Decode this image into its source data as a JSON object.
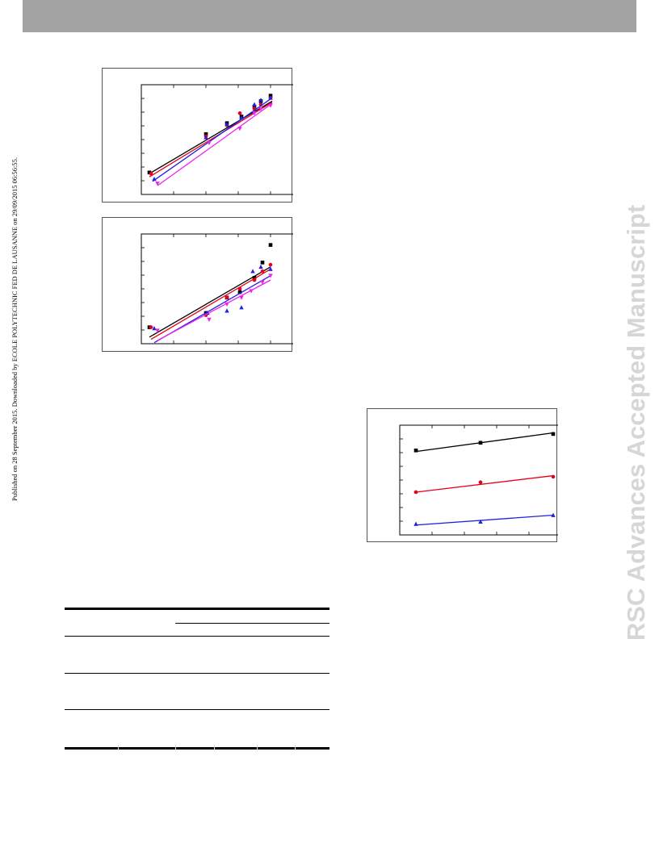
{
  "page": {
    "side_note": "Published on 28 September 2015. Downloaded by ECOLE POLYTECHNIC FED DE LAUSANNE on 29/09/2015 06:56:55.",
    "watermark": "RSC Advances Accepted Manuscript"
  },
  "colors": {
    "header_band": "#a3a3a3",
    "watermark": "#d6d6d6",
    "black_series": "#000000",
    "red_series": "#e8001b",
    "blue_series": "#1f1fe6",
    "magenta_series": "#ee22ee"
  },
  "chart_data": [
    {
      "type": "scatter",
      "title": "",
      "xlabel": "",
      "ylabel": "",
      "xlim": [
        0,
        1
      ],
      "ylim": [
        0,
        1
      ],
      "grid": false,
      "trendlines": true,
      "series": [
        {
          "color": "#000000",
          "marker": "square",
          "x": [
            0.05,
            0.4,
            0.53,
            0.62,
            0.7,
            0.74,
            0.8
          ],
          "y": [
            0.2,
            0.55,
            0.65,
            0.71,
            0.8,
            0.85,
            0.9
          ],
          "fit": [
            [
              0.05,
              0.19
            ],
            [
              0.81,
              0.85
            ]
          ]
        },
        {
          "color": "#e8001b",
          "marker": "circle",
          "x": [
            0.06,
            0.4,
            0.53,
            0.61,
            0.7,
            0.74,
            0.8
          ],
          "y": [
            0.19,
            0.53,
            0.63,
            0.74,
            0.78,
            0.82,
            0.88
          ],
          "fit": [
            [
              0.05,
              0.16
            ],
            [
              0.81,
              0.84
            ]
          ]
        },
        {
          "color": "#1f1fe6",
          "marker": "triangle",
          "x": [
            0.08,
            0.4,
            0.53,
            0.62,
            0.7,
            0.74,
            0.8
          ],
          "y": [
            0.14,
            0.52,
            0.64,
            0.7,
            0.82,
            0.86,
            0.88
          ],
          "fit": [
            [
              0.07,
              0.12
            ],
            [
              0.81,
              0.88
            ]
          ]
        },
        {
          "color": "#ee22ee",
          "marker": "triangle-down",
          "x": [
            0.1,
            0.42,
            0.61,
            0.7,
            0.74,
            0.8
          ],
          "y": [
            0.1,
            0.47,
            0.6,
            0.74,
            0.78,
            0.81
          ],
          "fit": [
            [
              0.1,
              0.08
            ],
            [
              0.81,
              0.83
            ]
          ]
        }
      ]
    },
    {
      "type": "scatter",
      "title": "",
      "xlabel": "",
      "ylabel": "",
      "xlim": [
        0,
        1
      ],
      "ylim": [
        0,
        1
      ],
      "grid": false,
      "trendlines": true,
      "series": [
        {
          "color": "#000000",
          "marker": "square",
          "x": [
            0.05,
            0.4,
            0.53,
            0.61,
            0.7,
            0.75,
            0.8
          ],
          "y": [
            0.15,
            0.28,
            0.42,
            0.47,
            0.6,
            0.74,
            0.9
          ],
          "fit": [
            [
              0.05,
              0.06
            ],
            [
              0.8,
              0.7
            ]
          ]
        },
        {
          "color": "#e8001b",
          "marker": "circle",
          "x": [
            0.06,
            0.4,
            0.53,
            0.61,
            0.7,
            0.75,
            0.8
          ],
          "y": [
            0.15,
            0.26,
            0.42,
            0.5,
            0.58,
            0.66,
            0.72
          ],
          "fit": [
            [
              0.06,
              0.04
            ],
            [
              0.8,
              0.68
            ]
          ]
        },
        {
          "color": "#1f1fe6",
          "marker": "triangle",
          "x": [
            0.08,
            0.41,
            0.53,
            0.62,
            0.69,
            0.74,
            0.8
          ],
          "y": [
            0.14,
            0.28,
            0.3,
            0.33,
            0.66,
            0.7,
            0.68
          ],
          "fit": [
            [
              0.08,
              0.01
            ],
            [
              0.8,
              0.62
            ]
          ]
        },
        {
          "color": "#ee22ee",
          "marker": "triangle-down",
          "x": [
            0.1,
            0.42,
            0.53,
            0.62,
            0.68,
            0.75,
            0.8
          ],
          "y": [
            0.12,
            0.22,
            0.36,
            0.42,
            0.48,
            0.56,
            0.62
          ],
          "fit": [
            [
              0.1,
              0.03
            ],
            [
              0.8,
              0.58
            ]
          ]
        }
      ]
    },
    {
      "type": "scatter",
      "title": "",
      "xlabel": "",
      "ylabel": "",
      "xlim": [
        0,
        1
      ],
      "ylim": [
        0,
        1
      ],
      "grid": false,
      "trendlines": true,
      "series": [
        {
          "color": "#000000",
          "marker": "square",
          "x": [
            0.1,
            0.5,
            0.95
          ],
          "y": [
            0.77,
            0.84,
            0.92
          ],
          "fit": [
            [
              0.1,
              0.76
            ],
            [
              0.95,
              0.93
            ]
          ]
        },
        {
          "color": "#e8001b",
          "marker": "circle",
          "x": [
            0.1,
            0.5,
            0.95
          ],
          "y": [
            0.39,
            0.48,
            0.53
          ],
          "fit": [
            [
              0.1,
              0.39
            ],
            [
              0.95,
              0.54
            ]
          ]
        },
        {
          "color": "#1f1fe6",
          "marker": "triangle",
          "x": [
            0.1,
            0.5,
            0.95
          ],
          "y": [
            0.1,
            0.12,
            0.18
          ],
          "fit": [
            [
              0.1,
              0.09
            ],
            [
              0.95,
              0.18
            ]
          ]
        }
      ]
    }
  ]
}
